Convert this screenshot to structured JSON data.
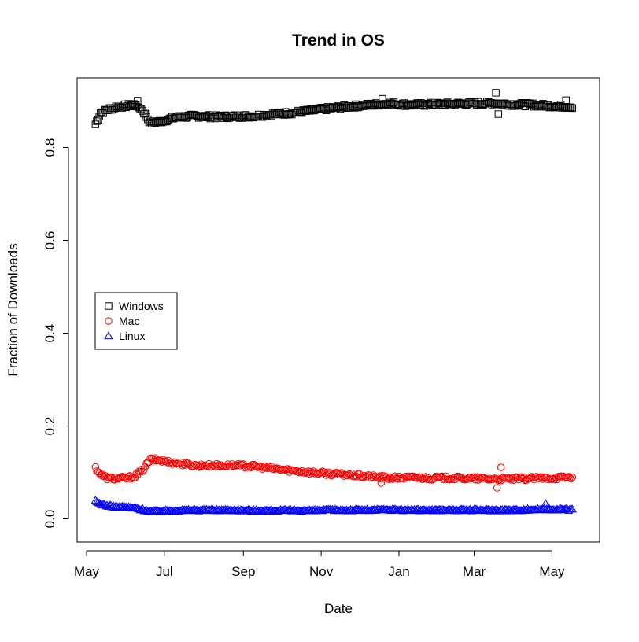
{
  "chart_data": {
    "type": "scatter",
    "title": "Trend in OS",
    "xlabel": "Date",
    "ylabel": "Fraction of Downloads",
    "x_ticks": [
      "May",
      "Jul",
      "Sep",
      "Nov",
      "Jan",
      "Mar",
      "May"
    ],
    "y_ticks": [
      "0.0",
      "0.2",
      "0.4",
      "0.6",
      "0.8"
    ],
    "ylim": [
      -0.05,
      0.95
    ],
    "xlim": [
      "2008-05-01",
      "2009-05-31"
    ],
    "x_start": "2008-05-08",
    "x_end": "2009-05-17",
    "grid": false,
    "legend_position": "left-center",
    "series": [
      {
        "name": "Windows",
        "color": "#000000",
        "marker": "square",
        "anchors": [
          [
            "2008-05-08",
            0.85
          ],
          [
            "2008-05-12",
            0.875
          ],
          [
            "2008-05-18",
            0.882
          ],
          [
            "2008-05-25",
            0.888
          ],
          [
            "2008-06-02",
            0.89
          ],
          [
            "2008-06-08",
            0.893
          ],
          [
            "2008-06-14",
            0.88
          ],
          [
            "2008-06-20",
            0.853
          ],
          [
            "2008-06-28",
            0.856
          ],
          [
            "2008-07-10",
            0.865
          ],
          [
            "2008-07-25",
            0.868
          ],
          [
            "2008-08-10",
            0.866
          ],
          [
            "2008-08-25",
            0.867
          ],
          [
            "2008-09-10",
            0.868
          ],
          [
            "2008-09-25",
            0.872
          ],
          [
            "2008-10-10",
            0.875
          ],
          [
            "2008-10-25",
            0.88
          ],
          [
            "2008-11-10",
            0.885
          ],
          [
            "2008-11-25",
            0.889
          ],
          [
            "2008-12-10",
            0.892
          ],
          [
            "2008-12-25",
            0.895
          ],
          [
            "2009-01-10",
            0.892
          ],
          [
            "2009-01-25",
            0.893
          ],
          [
            "2009-02-10",
            0.894
          ],
          [
            "2009-02-25",
            0.895
          ],
          [
            "2009-03-15",
            0.896
          ],
          [
            "2009-03-31",
            0.893
          ],
          [
            "2009-04-15",
            0.892
          ],
          [
            "2009-04-30",
            0.89
          ],
          [
            "2009-05-17",
            0.888
          ]
        ]
      },
      {
        "name": "Mac",
        "color": "#ff0000",
        "marker": "circle",
        "anchors": [
          [
            "2008-05-08",
            0.11
          ],
          [
            "2008-05-12",
            0.095
          ],
          [
            "2008-05-18",
            0.087
          ],
          [
            "2008-05-25",
            0.087
          ],
          [
            "2008-06-02",
            0.088
          ],
          [
            "2008-06-08",
            0.092
          ],
          [
            "2008-06-14",
            0.105
          ],
          [
            "2008-06-20",
            0.128
          ],
          [
            "2008-06-28",
            0.126
          ],
          [
            "2008-07-10",
            0.12
          ],
          [
            "2008-07-25",
            0.115
          ],
          [
            "2008-08-10",
            0.115
          ],
          [
            "2008-08-25",
            0.115
          ],
          [
            "2008-09-10",
            0.113
          ],
          [
            "2008-09-25",
            0.108
          ],
          [
            "2008-10-10",
            0.104
          ],
          [
            "2008-10-25",
            0.1
          ],
          [
            "2008-11-10",
            0.097
          ],
          [
            "2008-11-25",
            0.094
          ],
          [
            "2008-12-10",
            0.091
          ],
          [
            "2008-12-25",
            0.088
          ],
          [
            "2009-01-10",
            0.089
          ],
          [
            "2009-01-25",
            0.088
          ],
          [
            "2009-02-10",
            0.088
          ],
          [
            "2009-02-25",
            0.087
          ],
          [
            "2009-03-15",
            0.086
          ],
          [
            "2009-03-31",
            0.086
          ],
          [
            "2009-04-15",
            0.087
          ],
          [
            "2009-04-30",
            0.088
          ],
          [
            "2009-05-17",
            0.09
          ]
        ]
      },
      {
        "name": "Linux",
        "color": "#0000ff",
        "marker": "triangle",
        "anchors": [
          [
            "2008-05-08",
            0.038
          ],
          [
            "2008-05-12",
            0.032
          ],
          [
            "2008-05-18",
            0.028
          ],
          [
            "2008-05-25",
            0.026
          ],
          [
            "2008-06-02",
            0.025
          ],
          [
            "2008-06-08",
            0.023
          ],
          [
            "2008-06-14",
            0.02
          ],
          [
            "2008-06-20",
            0.016
          ],
          [
            "2008-06-28",
            0.017
          ],
          [
            "2008-07-10",
            0.018
          ],
          [
            "2008-07-25",
            0.019
          ],
          [
            "2008-08-10",
            0.019
          ],
          [
            "2008-08-25",
            0.019
          ],
          [
            "2008-09-10",
            0.018
          ],
          [
            "2008-09-25",
            0.018
          ],
          [
            "2008-10-10",
            0.018
          ],
          [
            "2008-10-25",
            0.018
          ],
          [
            "2008-11-10",
            0.019
          ],
          [
            "2008-11-25",
            0.019
          ],
          [
            "2008-12-10",
            0.019
          ],
          [
            "2008-12-25",
            0.02
          ],
          [
            "2009-01-10",
            0.019
          ],
          [
            "2009-01-25",
            0.019
          ],
          [
            "2009-02-10",
            0.019
          ],
          [
            "2009-02-25",
            0.019
          ],
          [
            "2009-03-15",
            0.019
          ],
          [
            "2009-03-31",
            0.019
          ],
          [
            "2009-04-15",
            0.02
          ],
          [
            "2009-04-30",
            0.021
          ],
          [
            "2009-05-17",
            0.02
          ]
        ]
      }
    ],
    "outliers": [
      {
        "series": "Windows",
        "x": "2008-06-10",
        "y": 0.901
      },
      {
        "series": "Windows",
        "x": "2008-12-19",
        "y": 0.905
      },
      {
        "series": "Windows",
        "x": "2009-03-18",
        "y": 0.918
      },
      {
        "series": "Windows",
        "x": "2009-03-20",
        "y": 0.872
      },
      {
        "series": "Windows",
        "x": "2009-05-12",
        "y": 0.902
      },
      {
        "series": "Mac",
        "x": "2008-12-18",
        "y": 0.077
      },
      {
        "series": "Mac",
        "x": "2009-03-19",
        "y": 0.067
      },
      {
        "series": "Mac",
        "x": "2009-03-22",
        "y": 0.111
      },
      {
        "series": "Linux",
        "x": "2009-04-26",
        "y": 0.033
      }
    ]
  }
}
